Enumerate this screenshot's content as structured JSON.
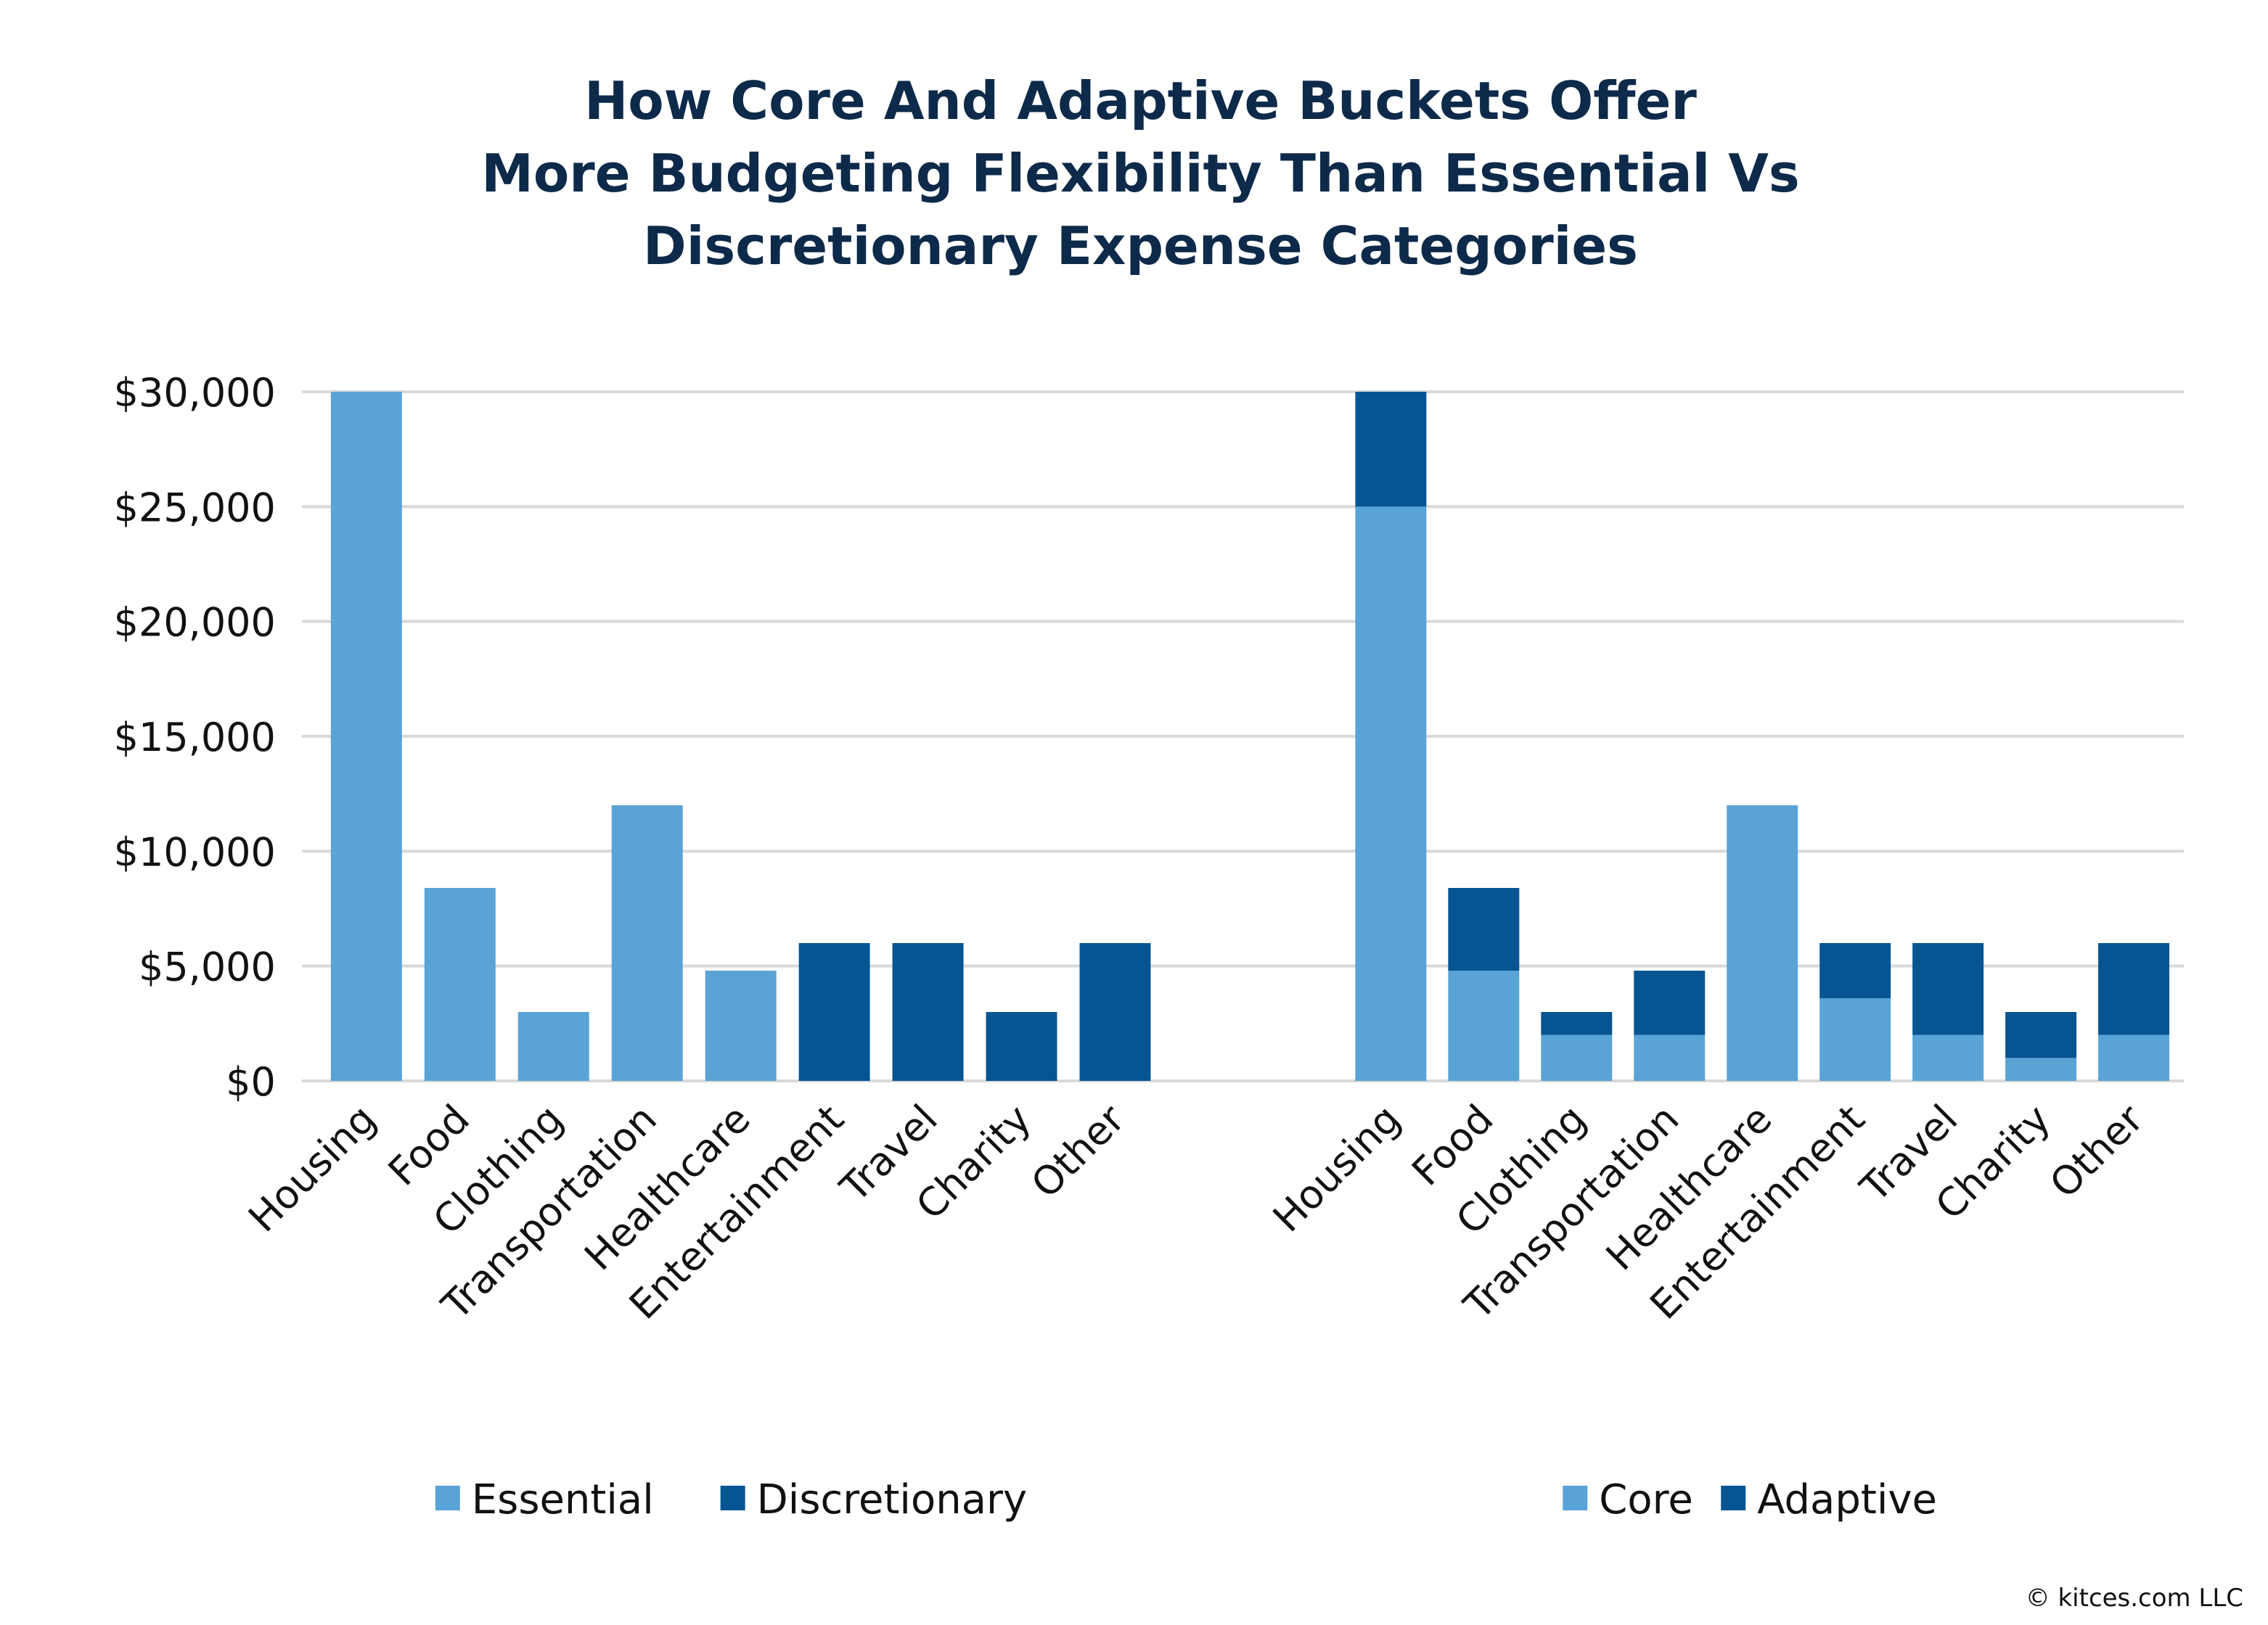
{
  "colors": {
    "light": "#5aa3d6",
    "dark": "#065592",
    "title": "#0d2a4a",
    "grid": "#d9d9d9"
  },
  "credit": "© kitces.com LLC",
  "chart_data": {
    "type": "bar",
    "title_lines": [
      "How Core And Adaptive Buckets Offer",
      "More Budgeting Flexibility Than Essential Vs",
      "Discretionary Expense Categories"
    ],
    "title": "How Core And Adaptive Buckets Offer More Budgeting Flexibility Than Essential Vs Discretionary Expense Categories",
    "ylim": [
      0,
      30000
    ],
    "yticks": [
      0,
      5000,
      10000,
      15000,
      20000,
      25000,
      30000
    ],
    "ytick_labels": [
      "$0",
      "$5,000",
      "$10,000",
      "$15,000",
      "$20,000",
      "$25,000",
      "$30,000"
    ],
    "grid": true,
    "xlabel": "",
    "ylabel": "",
    "panels": [
      {
        "name": "essential-vs-discretionary",
        "stacked": false,
        "categories": [
          "Housing",
          "Food",
          "Clothing",
          "Transportation",
          "Healthcare",
          "Entertainment",
          "Travel",
          "Charity",
          "Other"
        ],
        "series": [
          {
            "name": "Essential",
            "color_key": "light",
            "values": [
              30000,
              8400,
              3000,
              12000,
              4800,
              0,
              0,
              0,
              0
            ]
          },
          {
            "name": "Discretionary",
            "color_key": "dark",
            "values": [
              0,
              0,
              0,
              0,
              0,
              6000,
              6000,
              3000,
              6000
            ]
          }
        ],
        "legend": [
          "Essential",
          "Discretionary"
        ],
        "legend_position": "bottom"
      },
      {
        "name": "core-vs-adaptive",
        "stacked": true,
        "categories": [
          "Housing",
          "Food",
          "Clothing",
          "Transportation",
          "Healthcare",
          "Entertainment",
          "Travel",
          "Charity",
          "Other"
        ],
        "series": [
          {
            "name": "Core",
            "color_key": "light",
            "values": [
              25000,
              4800,
              2000,
              2000,
              12000,
              3600,
              2000,
              1000,
              2000
            ]
          },
          {
            "name": "Adaptive",
            "color_key": "dark",
            "values": [
              5000,
              3600,
              1000,
              2800,
              0,
              2400,
              4000,
              2000,
              4000
            ]
          }
        ],
        "legend": [
          "Core",
          "Adaptive"
        ],
        "legend_position": "bottom"
      }
    ]
  }
}
